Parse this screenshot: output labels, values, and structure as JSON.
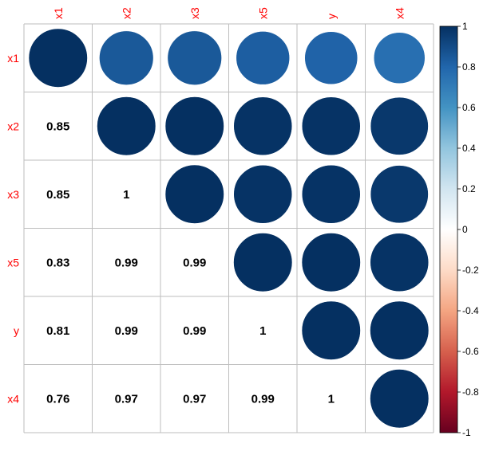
{
  "chart_data": {
    "type": "heatmap",
    "title": "",
    "variables": [
      "x1",
      "x2",
      "x3",
      "x5",
      "y",
      "x4"
    ],
    "upper_display": "circle",
    "lower_display": "number",
    "matrix": [
      [
        1.0,
        0.85,
        0.85,
        0.83,
        0.81,
        0.76
      ],
      [
        0.85,
        1.0,
        1.0,
        0.99,
        0.99,
        0.97
      ],
      [
        0.85,
        1.0,
        1.0,
        0.99,
        0.99,
        0.97
      ],
      [
        0.83,
        0.99,
        0.99,
        1.0,
        1.0,
        0.99
      ],
      [
        0.81,
        0.99,
        0.99,
        1.0,
        1.0,
        1.0
      ],
      [
        0.76,
        0.97,
        0.97,
        0.99,
        1.0,
        1.0
      ]
    ],
    "number_labels": [
      [
        "",
        "",
        "",
        "",
        "",
        ""
      ],
      [
        "0.85",
        "",
        "",
        "",
        "",
        ""
      ],
      [
        "0.85",
        "1",
        "",
        "",
        "",
        ""
      ],
      [
        "0.83",
        "0.99",
        "0.99",
        "",
        "",
        ""
      ],
      [
        "0.81",
        "0.99",
        "0.99",
        "1",
        "",
        ""
      ],
      [
        "0.76",
        "0.97",
        "0.97",
        "0.99",
        "1",
        ""
      ]
    ],
    "colorbar": {
      "range": [
        -1,
        1
      ],
      "ticks": [
        "1",
        "0.8",
        "0.6",
        "0.4",
        "0.2",
        "0",
        "-0.2",
        "-0.4",
        "-0.6",
        "-0.8",
        "-1"
      ]
    },
    "colors": {
      "label_text": "#ff0000",
      "number_text": "#000000",
      "grid": "#bebebe",
      "scale": [
        "#67001f",
        "#b2182b",
        "#d6604d",
        "#f4a582",
        "#fddbc7",
        "#ffffff",
        "#d1e5f0",
        "#92c5de",
        "#4393c3",
        "#2166ac",
        "#053061"
      ]
    }
  }
}
